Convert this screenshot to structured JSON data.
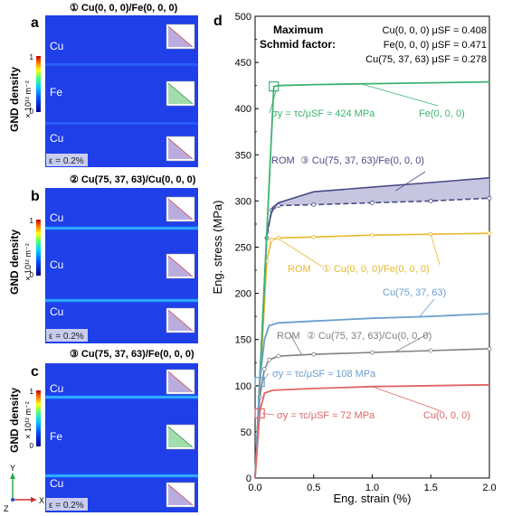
{
  "panels_left": [
    {
      "letter": "a",
      "header": "① Cu(0, 0, 0)/Fe(0, 0, 0)",
      "layers": [
        "Cu",
        "Fe",
        "Cu"
      ],
      "strain": "ε = 0.2%"
    },
    {
      "letter": "b",
      "header": "② Cu(75, 37, 63)/Cu(0, 0, 0)",
      "layers": [
        "Cu",
        "Cu",
        "Cu"
      ],
      "strain": "ε = 0.2%"
    },
    {
      "letter": "c",
      "header": "③ Cu(75, 37, 63)/Fe(0, 0, 0)",
      "layers": [
        "Cu",
        "Fe",
        "Cu"
      ],
      "strain": "ε = 0.2%"
    }
  ],
  "colorbar": {
    "title": "GND density",
    "unit": "× 10¹² m⁻²",
    "tick_max": "1",
    "tick_min": "0"
  },
  "axes_triad": {
    "y": "Y",
    "x": "X",
    "z": "Z"
  },
  "colors": {
    "green": "#3cb371",
    "yellow": "#e8b92a",
    "blue": "#6a9fcf",
    "red": "#e06666",
    "purple": "#4a4a86",
    "grey": "#808080"
  },
  "chart_data": {
    "panel_letter": "d",
    "type": "line",
    "xlabel": "Eng. strain (%)",
    "ylabel": "Eng. stress (MPa)",
    "xlim": [
      0,
      2.0
    ],
    "ylim": [
      0,
      500
    ],
    "xticks": [
      "0.0",
      "0.5",
      "1.0",
      "1.5",
      "2.0"
    ],
    "yticks": [
      "0",
      "50",
      "100",
      "150",
      "200",
      "250",
      "300",
      "350",
      "400",
      "450",
      "500"
    ],
    "grid": false,
    "legend_title": [
      "Maximum",
      "Schmid factor:"
    ],
    "legend_entries": [
      "Cu(0, 0, 0) μSF = 0.408",
      "Fe(0, 0, 0) μSF = 0.471",
      "Cu(75, 37, 63) μSF = 0.278"
    ],
    "series": [
      {
        "name": "Fe(0, 0, 0)",
        "color": "#3cb371",
        "x": [
          0,
          0.16,
          0.2,
          0.5,
          1.0,
          1.5,
          2.0
        ],
        "y": [
          0,
          424,
          425,
          426,
          427,
          428,
          429
        ]
      },
      {
        "name": "Cu(75, 37, 63)",
        "color": "#6a9fcf",
        "x": [
          0,
          0.04,
          0.08,
          0.12,
          0.2,
          0.5,
          1.0,
          1.5,
          2.0
        ],
        "y": [
          0,
          105,
          150,
          165,
          168,
          170,
          173,
          175,
          178
        ]
      },
      {
        "name": "Cu(0, 0, 0)",
        "color": "#e06666",
        "x": [
          0,
          0.04,
          0.08,
          0.15,
          0.5,
          1.0,
          1.5,
          2.0
        ],
        "y": [
          0,
          72,
          92,
          95,
          97,
          99,
          100,
          101
        ]
      }
    ],
    "rom_series": [
      {
        "name": "① Cu(0, 0, 0)/Fe(0, 0, 0)",
        "color": "#e8b92a",
        "x": [
          0,
          0.1,
          0.14,
          0.2,
          0.5,
          1.0,
          1.5,
          2.0
        ],
        "y": [
          0,
          235,
          258,
          260,
          261,
          263,
          264,
          265
        ]
      },
      {
        "name": "② Cu(75, 37, 63)/Cu(0, 0, 0)",
        "color": "#808080",
        "x": [
          0,
          0.04,
          0.08,
          0.12,
          0.2,
          0.5,
          1.0,
          1.5,
          2.0
        ],
        "y": [
          0,
          88,
          118,
          128,
          132,
          134,
          136,
          138,
          140
        ]
      },
      {
        "name": "③ Cu(75, 37, 63)/Fe(0, 0, 0)",
        "color": "#4a4a86",
        "x": [
          0,
          0.1,
          0.14,
          0.2,
          0.5,
          1.0,
          1.5,
          2.0
        ],
        "y": [
          0,
          260,
          290,
          295,
          296,
          298,
          300,
          303
        ]
      },
      {
        "name": "③ upper",
        "color": "#4a4a86",
        "x": [
          0,
          0.1,
          0.15,
          0.2,
          0.5,
          1.0,
          1.5,
          2.0
        ],
        "y": [
          0,
          265,
          293,
          298,
          310,
          315,
          320,
          325
        ]
      }
    ],
    "rom_label": "ROM",
    "annotations": [
      {
        "text": "σy = τc/μSF ≈ 424 MPa",
        "color": "#3cb371"
      },
      {
        "text": "σy = τc/μSF ≈ 108 MPa",
        "color": "#6a9fcf"
      },
      {
        "text": "σy = τc/μSF ≈ 72 MPa",
        "color": "#e06666"
      }
    ]
  }
}
